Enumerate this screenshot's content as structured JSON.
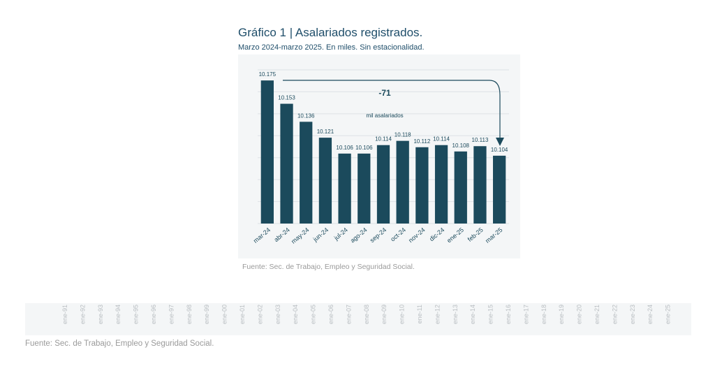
{
  "chart_data": [
    {
      "type": "bar",
      "title": "Gráfico 1 | Asalariados registrados.",
      "subtitle": "Marzo 2024-marzo 2025. En miles. Sin estacionalidad.",
      "categories": [
        "mar-24",
        "abr-24",
        "may-24",
        "jun-24",
        "jul-24",
        "ago-24",
        "sep-24",
        "oct-24",
        "nov-24",
        "dic-24",
        "ene-25",
        "feb-25",
        "mar-25"
      ],
      "values": [
        10175,
        10153,
        10136,
        10121,
        10106,
        10106,
        10114,
        10118,
        10112,
        10114,
        10108,
        10113,
        10104
      ],
      "value_labels": [
        "10.175",
        "10.153",
        "10.136",
        "10.121",
        "10.106",
        "10.106",
        "10.114",
        "10.118",
        "10.112",
        "10.114",
        "10.108",
        "10.113",
        "10.104"
      ],
      "ylim": [
        10040,
        10185
      ],
      "grid": true,
      "bar_color": "#1b4a5c",
      "annotation": {
        "value": "-71",
        "text": "mil asalariados",
        "from": "mar-24",
        "to": "mar-25"
      },
      "source": "Fuente: Sec. de Trabajo, Empleo y Seguridad Social."
    },
    {
      "type": "table",
      "tick_labels": [
        "ene-91",
        "ene-92",
        "ene-93",
        "ene-94",
        "ene-95",
        "ene-96",
        "ene-97",
        "ene-98",
        "ene-99",
        "ene-00",
        "ene-01",
        "ene-02",
        "ene-03",
        "ene-04",
        "ene-05",
        "ene-06",
        "ene-07",
        "ene-08",
        "ene-09",
        "ene-10",
        "ene-11",
        "ene-12",
        "ene-13",
        "ene-14",
        "ene-15",
        "ene-16",
        "ene-17",
        "ene-18",
        "ene-19",
        "ene-20",
        "ene-21",
        "ene-22",
        "ene-23",
        "ene-24",
        "ene-25"
      ],
      "source": "Fuente: Sec. de Trabajo, Empleo y Seguridad Social."
    }
  ],
  "colors": {
    "title": "#1f4e6a",
    "bar": "#1b4a5c",
    "grid": "#dde2e5",
    "source": "#9a9a9a",
    "strip_ticks": "#b9bec2"
  }
}
